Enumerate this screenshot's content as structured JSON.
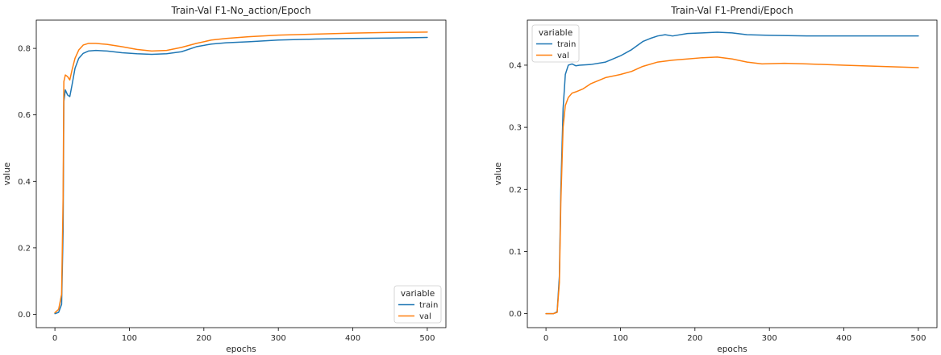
{
  "colors": {
    "train": "#1f77b4",
    "val": "#ff7f0e",
    "axis": "#000000",
    "background": "#ffffff"
  },
  "chart_data": [
    {
      "type": "line",
      "title": "Train-Val F1-No_action/Epoch",
      "xlabel": "epochs",
      "ylabel": "value",
      "xlim": [
        -25,
        525
      ],
      "ylim": [
        -0.04,
        0.885
      ],
      "xticks": [
        0,
        100,
        200,
        300,
        400,
        500
      ],
      "yticks": [
        0.0,
        0.2,
        0.4,
        0.6,
        0.8
      ],
      "ytick_labels": [
        "0.0",
        "0.2",
        "0.4",
        "0.6",
        "0.8"
      ],
      "grid": false,
      "legend": {
        "title": "variable",
        "placement": "lower right",
        "entries": [
          "train",
          "val"
        ]
      },
      "series": [
        {
          "name": "train",
          "x": [
            0,
            5,
            9,
            11,
            12,
            14,
            17,
            20,
            23,
            27,
            32,
            38,
            45,
            55,
            70,
            90,
            110,
            130,
            150,
            170,
            190,
            210,
            230,
            260,
            300,
            350,
            400,
            450,
            500
          ],
          "y": [
            0.002,
            0.006,
            0.03,
            0.25,
            0.64,
            0.675,
            0.66,
            0.655,
            0.69,
            0.74,
            0.77,
            0.785,
            0.792,
            0.794,
            0.792,
            0.787,
            0.784,
            0.782,
            0.784,
            0.79,
            0.805,
            0.813,
            0.817,
            0.82,
            0.825,
            0.828,
            0.83,
            0.831,
            0.833
          ]
        },
        {
          "name": "val",
          "x": [
            0,
            5,
            9,
            11,
            12,
            14,
            17,
            20,
            23,
            27,
            32,
            38,
            45,
            55,
            70,
            90,
            110,
            130,
            150,
            170,
            190,
            210,
            230,
            260,
            300,
            350,
            400,
            450,
            500
          ],
          "y": [
            0.005,
            0.015,
            0.06,
            0.35,
            0.7,
            0.72,
            0.715,
            0.705,
            0.735,
            0.77,
            0.795,
            0.81,
            0.815,
            0.815,
            0.812,
            0.805,
            0.797,
            0.792,
            0.794,
            0.803,
            0.815,
            0.825,
            0.83,
            0.835,
            0.84,
            0.843,
            0.846,
            0.848,
            0.849
          ]
        }
      ]
    },
    {
      "type": "line",
      "title": "Train-Val F1-Prendi/Epoch",
      "xlabel": "epochs",
      "ylabel": "value",
      "xlim": [
        -25,
        525
      ],
      "ylim": [
        -0.0225,
        0.4725
      ],
      "xticks": [
        0,
        100,
        200,
        300,
        400,
        500
      ],
      "yticks": [
        0.0,
        0.1,
        0.2,
        0.3,
        0.4
      ],
      "ytick_labels": [
        "0.0",
        "0.1",
        "0.2",
        "0.3",
        "0.4"
      ],
      "grid": false,
      "legend": {
        "title": "variable",
        "placement": "upper left",
        "entries": [
          "train",
          "val"
        ]
      },
      "series": [
        {
          "name": "train",
          "x": [
            0,
            10,
            15,
            18,
            20,
            23,
            26,
            30,
            35,
            40,
            45,
            60,
            80,
            100,
            115,
            130,
            140,
            150,
            160,
            170,
            190,
            210,
            230,
            250,
            270,
            300,
            350,
            400,
            450,
            500
          ],
          "y": [
            0,
            0,
            0.003,
            0.06,
            0.2,
            0.33,
            0.385,
            0.4,
            0.402,
            0.399,
            0.4,
            0.401,
            0.405,
            0.415,
            0.425,
            0.438,
            0.443,
            0.447,
            0.449,
            0.447,
            0.451,
            0.452,
            0.453,
            0.452,
            0.449,
            0.448,
            0.447,
            0.447,
            0.447,
            0.447
          ]
        },
        {
          "name": "val",
          "x": [
            0,
            10,
            15,
            18,
            20,
            23,
            26,
            30,
            35,
            40,
            50,
            60,
            80,
            100,
            115,
            130,
            150,
            170,
            190,
            210,
            230,
            250,
            270,
            290,
            320,
            350,
            400,
            450,
            500
          ],
          "y": [
            0,
            0,
            0.002,
            0.05,
            0.18,
            0.3,
            0.335,
            0.348,
            0.355,
            0.357,
            0.362,
            0.37,
            0.38,
            0.385,
            0.39,
            0.398,
            0.405,
            0.408,
            0.41,
            0.412,
            0.413,
            0.41,
            0.405,
            0.402,
            0.403,
            0.402,
            0.4,
            0.398,
            0.396
          ]
        }
      ]
    }
  ]
}
